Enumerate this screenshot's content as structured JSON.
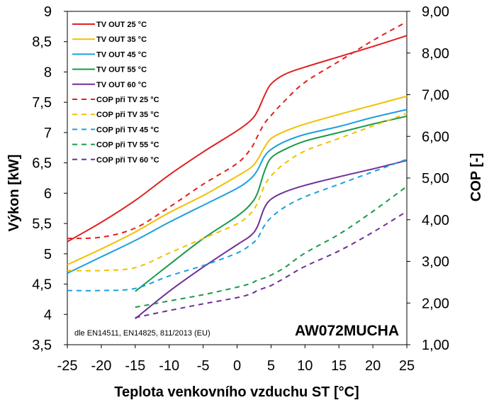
{
  "chart_data": {
    "type": "line",
    "model": "AW072MUCHA",
    "standards_note": "dle EN14511, EN14825, 811/2013 (EU)",
    "xlabel": "Teplota venkovního vzduchu ST [°C]",
    "ylabel_left": "Výkon [kW]",
    "ylabel_right": "COP [-]",
    "xlim": [
      -25,
      25
    ],
    "ylim_left": [
      3.5,
      9
    ],
    "ylim_right": [
      1,
      9
    ],
    "x_ticks": [
      "-25",
      "-20",
      "-15",
      "-10",
      "-5",
      "0",
      "5",
      "10",
      "15",
      "20",
      "25"
    ],
    "y_left_ticks": [
      "3,5",
      "4",
      "4,5",
      "5",
      "5,5",
      "6",
      "6,5",
      "7",
      "7,5",
      "8",
      "8,5",
      "9"
    ],
    "y_right_ticks": [
      "1,00",
      "2,00",
      "3,00",
      "4,00",
      "5,00",
      "6,00",
      "7,00",
      "8,00",
      "9,00"
    ],
    "grid": false,
    "legend_position": "top-left",
    "series": [
      {
        "name": "TV OUT 25 °C",
        "axis": "left",
        "color": "#e02020",
        "dash": false,
        "x": [
          -25,
          -20,
          -15,
          -10,
          -5,
          0,
          2,
          3,
          4,
          5,
          7,
          10,
          15,
          20,
          25
        ],
        "y": [
          5.2,
          5.52,
          5.88,
          6.3,
          6.68,
          7.03,
          7.2,
          7.35,
          7.6,
          7.8,
          7.96,
          8.08,
          8.25,
          8.42,
          8.6
        ]
      },
      {
        "name": "TV OUT 35 °C",
        "axis": "left",
        "color": "#f2c000",
        "dash": false,
        "x": [
          -25,
          -20,
          -15,
          -10,
          -5,
          0,
          2,
          3,
          4,
          5,
          7,
          10,
          15,
          20,
          25
        ],
        "y": [
          4.82,
          5.08,
          5.36,
          5.68,
          5.96,
          6.28,
          6.42,
          6.55,
          6.75,
          6.9,
          7.02,
          7.14,
          7.3,
          7.45,
          7.6
        ]
      },
      {
        "name": "TV OUT 45 °C",
        "axis": "left",
        "color": "#1aa0e0",
        "dash": false,
        "x": [
          -25,
          -20,
          -15,
          -10,
          -5,
          0,
          2,
          3,
          4,
          5,
          7,
          10,
          15,
          20,
          25
        ],
        "y": [
          4.68,
          4.95,
          5.22,
          5.52,
          5.8,
          6.08,
          6.24,
          6.38,
          6.6,
          6.72,
          6.85,
          6.97,
          7.1,
          7.25,
          7.38
        ]
      },
      {
        "name": "TV OUT 55 °C",
        "axis": "left",
        "color": "#1a9a4a",
        "dash": false,
        "x": [
          -15,
          -10,
          -5,
          0,
          2,
          3,
          4,
          5,
          7,
          10,
          15,
          20,
          25
        ],
        "y": [
          4.38,
          4.82,
          5.25,
          5.62,
          5.82,
          6.0,
          6.35,
          6.58,
          6.72,
          6.86,
          7.0,
          7.14,
          7.27
        ]
      },
      {
        "name": "TV OUT 60 °C",
        "axis": "left",
        "color": "#6f3098",
        "dash": false,
        "x": [
          -15,
          -10,
          -5,
          0,
          2,
          3,
          4,
          5,
          7,
          10,
          15,
          20,
          25
        ],
        "y": [
          3.93,
          4.38,
          4.78,
          5.15,
          5.3,
          5.45,
          5.75,
          5.9,
          6.02,
          6.13,
          6.27,
          6.4,
          6.54
        ]
      },
      {
        "name": "COP při TV 25 °C",
        "axis": "right",
        "color": "#e02020",
        "dash": true,
        "x": [
          -25,
          -20,
          -15,
          -10,
          -5,
          0,
          2,
          3,
          4,
          5,
          7,
          10,
          15,
          20,
          25
        ],
        "y": [
          3.55,
          3.58,
          3.8,
          4.3,
          4.85,
          5.35,
          5.7,
          6.0,
          6.3,
          6.5,
          6.85,
          7.3,
          7.8,
          8.3,
          8.75
        ]
      },
      {
        "name": "COP při TV 35 °C",
        "axis": "right",
        "color": "#f2c000",
        "dash": true,
        "x": [
          -25,
          -20,
          -15,
          -10,
          -5,
          0,
          2,
          3,
          4,
          5,
          7,
          10,
          15,
          20,
          25
        ],
        "y": [
          2.78,
          2.78,
          2.85,
          3.2,
          3.55,
          3.9,
          4.15,
          4.4,
          4.8,
          5.05,
          5.35,
          5.65,
          5.95,
          6.25,
          6.55
        ]
      },
      {
        "name": "COP při TV 45 °C",
        "axis": "right",
        "color": "#1aa0e0",
        "dash": true,
        "x": [
          -25,
          -20,
          -15,
          -10,
          -5,
          0,
          2,
          3,
          4,
          5,
          7,
          10,
          15,
          20,
          25
        ],
        "y": [
          2.3,
          2.3,
          2.35,
          2.65,
          2.9,
          3.2,
          3.4,
          3.55,
          3.85,
          4.05,
          4.3,
          4.55,
          4.85,
          5.15,
          5.45
        ]
      },
      {
        "name": "COP při TV 55 °C",
        "axis": "right",
        "color": "#1a9a4a",
        "dash": true,
        "x": [
          -15,
          -10,
          -5,
          0,
          2,
          3,
          4,
          5,
          7,
          10,
          15,
          20,
          25
        ],
        "y": [
          1.9,
          2.05,
          2.2,
          2.38,
          2.47,
          2.55,
          2.6,
          2.67,
          2.85,
          3.2,
          3.65,
          4.2,
          4.8
        ]
      },
      {
        "name": "COP při TV 60 °C",
        "axis": "right",
        "color": "#6f3098",
        "dash": true,
        "x": [
          -15,
          -10,
          -5,
          0,
          2,
          3,
          4,
          5,
          7,
          10,
          15,
          20,
          25
        ],
        "y": [
          1.65,
          1.82,
          1.98,
          2.13,
          2.22,
          2.3,
          2.36,
          2.42,
          2.6,
          2.88,
          3.25,
          3.7,
          4.2
        ]
      }
    ]
  }
}
